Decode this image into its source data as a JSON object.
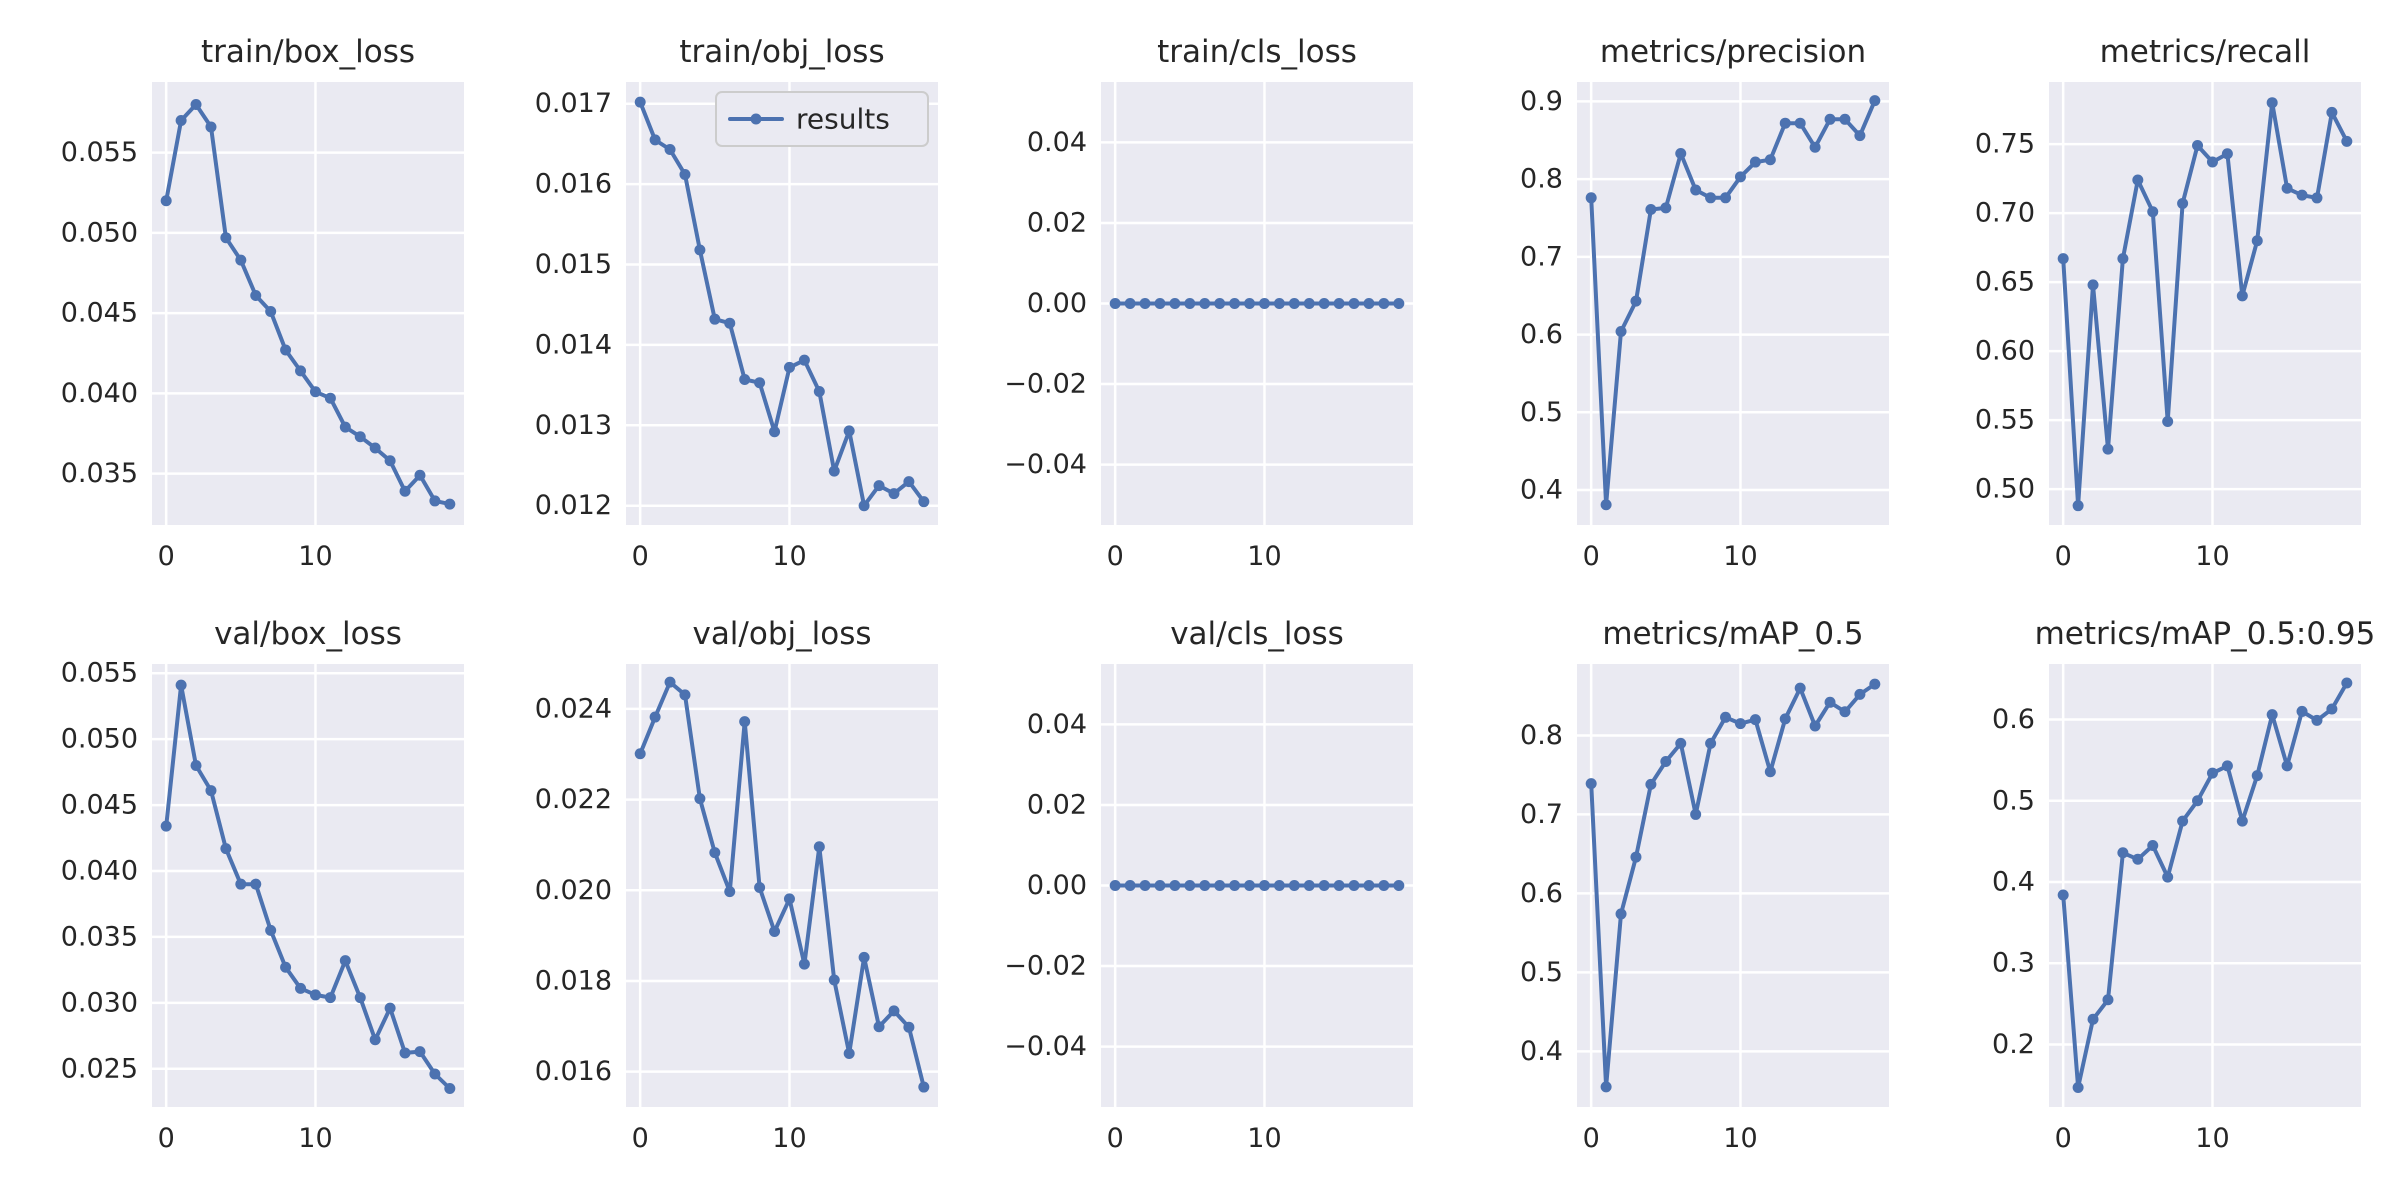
{
  "colors": {
    "series": "#4c72b0",
    "plot_background": "#eaeaf2",
    "grid": "#ffffff"
  },
  "chart_data": [
    {
      "type": "line",
      "title": "train/box_loss",
      "grid": true,
      "ylim": [
        0.0318,
        0.0594
      ],
      "yticks": [
        0.035,
        0.04,
        0.045,
        0.05,
        0.055
      ],
      "ytick_labels": [
        "0.035",
        "0.040",
        "0.045",
        "0.050",
        "0.055"
      ],
      "xticks": [
        0,
        10
      ],
      "xtick_labels": [
        "0",
        "10"
      ],
      "xlim": [
        -0.95,
        19.95
      ],
      "series": [
        {
          "values": [
            0.052,
            0.057,
            0.058,
            0.0566,
            0.0497,
            0.0483,
            0.0461,
            0.0451,
            0.0427,
            0.0414,
            0.0401,
            0.0397,
            0.0379,
            0.0373,
            0.0366,
            0.0358,
            0.0339,
            0.0349,
            0.0333,
            0.0331
          ]
        }
      ]
    },
    {
      "type": "line",
      "title": "train/obj_loss",
      "grid": true,
      "ylim": [
        0.01176,
        0.01727
      ],
      "yticks": [
        0.012,
        0.013,
        0.014,
        0.015,
        0.016,
        0.017
      ],
      "ytick_labels": [
        "0.012",
        "0.013",
        "0.014",
        "0.015",
        "0.016",
        "0.017"
      ],
      "xticks": [
        0,
        10
      ],
      "xtick_labels": [
        "0",
        "10"
      ],
      "xlim": [
        -0.95,
        19.95
      ],
      "legend": {
        "location": "upper right",
        "entries": [
          "results"
        ]
      },
      "series": [
        {
          "name": "results",
          "values": [
            0.01702,
            0.01655,
            0.01643,
            0.01612,
            0.01518,
            0.01432,
            0.01427,
            0.01357,
            0.01353,
            0.01292,
            0.01372,
            0.01381,
            0.01342,
            0.01243,
            0.01293,
            0.012,
            0.01225,
            0.01215,
            0.0123,
            0.01205
          ]
        }
      ]
    },
    {
      "type": "line",
      "title": "train/cls_loss",
      "grid": true,
      "ylim": [
        -0.055,
        0.055
      ],
      "yticks": [
        -0.04,
        -0.02,
        0.0,
        0.02,
        0.04
      ],
      "ytick_labels": [
        "−0.04",
        "−0.02",
        "0.00",
        "0.02",
        "0.04"
      ],
      "xticks": [
        0,
        10
      ],
      "xtick_labels": [
        "0",
        "10"
      ],
      "xlim": [
        -0.95,
        19.95
      ],
      "series": [
        {
          "values": [
            0,
            0,
            0,
            0,
            0,
            0,
            0,
            0,
            0,
            0,
            0,
            0,
            0,
            0,
            0,
            0,
            0,
            0,
            0,
            0
          ]
        }
      ]
    },
    {
      "type": "line",
      "title": "metrics/precision",
      "grid": true,
      "ylim": [
        0.355,
        0.925
      ],
      "yticks": [
        0.4,
        0.5,
        0.6,
        0.7,
        0.8,
        0.9
      ],
      "ytick_labels": [
        "0.4",
        "0.5",
        "0.6",
        "0.7",
        "0.8",
        "0.9"
      ],
      "xticks": [
        0,
        10
      ],
      "xtick_labels": [
        "0",
        "10"
      ],
      "xlim": [
        -0.95,
        19.95
      ],
      "series": [
        {
          "values": [
            0.776,
            0.381,
            0.604,
            0.643,
            0.761,
            0.763,
            0.833,
            0.786,
            0.776,
            0.776,
            0.803,
            0.822,
            0.825,
            0.872,
            0.872,
            0.841,
            0.877,
            0.877,
            0.856,
            0.901
          ]
        }
      ]
    },
    {
      "type": "line",
      "title": "metrics/recall",
      "grid": true,
      "ylim": [
        0.474,
        0.795
      ],
      "yticks": [
        0.5,
        0.55,
        0.6,
        0.65,
        0.7,
        0.75
      ],
      "ytick_labels": [
        "0.50",
        "0.55",
        "0.60",
        "0.65",
        "0.70",
        "0.75"
      ],
      "xticks": [
        0,
        10
      ],
      "xtick_labels": [
        "0",
        "10"
      ],
      "xlim": [
        -0.95,
        19.95
      ],
      "series": [
        {
          "values": [
            0.667,
            0.488,
            0.648,
            0.529,
            0.667,
            0.724,
            0.701,
            0.549,
            0.707,
            0.749,
            0.737,
            0.743,
            0.64,
            0.68,
            0.78,
            0.718,
            0.713,
            0.711,
            0.773,
            0.752
          ]
        }
      ]
    },
    {
      "type": "line",
      "title": "val/box_loss",
      "grid": true,
      "ylim": [
        0.0221,
        0.0557
      ],
      "yticks": [
        0.025,
        0.03,
        0.035,
        0.04,
        0.045,
        0.05,
        0.055
      ],
      "ytick_labels": [
        "0.025",
        "0.030",
        "0.035",
        "0.040",
        "0.045",
        "0.050",
        "0.055"
      ],
      "xticks": [
        0,
        10
      ],
      "xtick_labels": [
        "0",
        "10"
      ],
      "xlim": [
        -0.95,
        19.95
      ],
      "series": [
        {
          "values": [
            0.0434,
            0.0541,
            0.048,
            0.0461,
            0.0417,
            0.039,
            0.039,
            0.0355,
            0.0327,
            0.0311,
            0.0306,
            0.0304,
            0.0332,
            0.0304,
            0.0272,
            0.0296,
            0.0262,
            0.0263,
            0.0246,
            0.0235
          ]
        }
      ]
    },
    {
      "type": "line",
      "title": "val/obj_loss",
      "grid": true,
      "ylim": [
        0.01522,
        0.02499
      ],
      "yticks": [
        0.016,
        0.018,
        0.02,
        0.022,
        0.024
      ],
      "ytick_labels": [
        "0.016",
        "0.018",
        "0.020",
        "0.022",
        "0.024"
      ],
      "xticks": [
        0,
        10
      ],
      "xtick_labels": [
        "0",
        "10"
      ],
      "xlim": [
        -0.95,
        19.95
      ],
      "series": [
        {
          "values": [
            0.02301,
            0.02382,
            0.02459,
            0.02431,
            0.02202,
            0.02083,
            0.01997,
            0.02372,
            0.02006,
            0.01909,
            0.01981,
            0.01837,
            0.02096,
            0.01802,
            0.0164,
            0.01852,
            0.01699,
            0.01734,
            0.01698,
            0.01566
          ]
        }
      ]
    },
    {
      "type": "line",
      "title": "val/cls_loss",
      "grid": true,
      "ylim": [
        -0.055,
        0.055
      ],
      "yticks": [
        -0.04,
        -0.02,
        0.0,
        0.02,
        0.04
      ],
      "ytick_labels": [
        "−0.04",
        "−0.02",
        "0.00",
        "0.02",
        "0.04"
      ],
      "xticks": [
        0,
        10
      ],
      "xtick_labels": [
        "0",
        "10"
      ],
      "xlim": [
        -0.95,
        19.95
      ],
      "series": [
        {
          "values": [
            0,
            0,
            0,
            0,
            0,
            0,
            0,
            0,
            0,
            0,
            0,
            0,
            0,
            0,
            0,
            0,
            0,
            0,
            0,
            0
          ]
        }
      ]
    },
    {
      "type": "line",
      "title": "metrics/mAP_0.5",
      "grid": true,
      "ylim": [
        0.3295,
        0.8905
      ],
      "yticks": [
        0.4,
        0.5,
        0.6,
        0.7,
        0.8
      ],
      "ytick_labels": [
        "0.4",
        "0.5",
        "0.6",
        "0.7",
        "0.8"
      ],
      "xticks": [
        0,
        10
      ],
      "xtick_labels": [
        "0",
        "10"
      ],
      "xlim": [
        -0.95,
        19.95
      ],
      "series": [
        {
          "values": [
            0.739,
            0.355,
            0.574,
            0.646,
            0.738,
            0.767,
            0.79,
            0.7,
            0.79,
            0.823,
            0.815,
            0.82,
            0.754,
            0.821,
            0.86,
            0.812,
            0.842,
            0.83,
            0.852,
            0.865
          ]
        }
      ]
    },
    {
      "type": "line",
      "title": "metrics/mAP_0.5:0.95",
      "grid": true,
      "ylim": [
        0.123,
        0.6684
      ],
      "yticks": [
        0.2,
        0.3,
        0.4,
        0.5,
        0.6
      ],
      "ytick_labels": [
        "0.2",
        "0.3",
        "0.4",
        "0.5",
        "0.6"
      ],
      "xticks": [
        0,
        10
      ],
      "xtick_labels": [
        "0",
        "10"
      ],
      "xlim": [
        -0.95,
        19.95
      ],
      "series": [
        {
          "values": [
            0.384,
            0.147,
            0.231,
            0.255,
            0.436,
            0.428,
            0.445,
            0.406,
            0.475,
            0.5,
            0.534,
            0.543,
            0.475,
            0.531,
            0.606,
            0.543,
            0.61,
            0.599,
            0.613,
            0.645
          ]
        }
      ]
    }
  ]
}
